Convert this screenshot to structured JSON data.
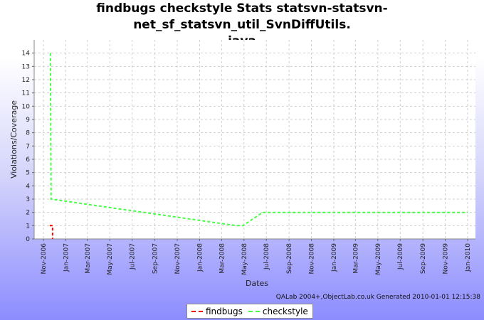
{
  "chart_data": {
    "type": "line",
    "title_line1": "findbugs checkstyle  Stats statsvn-statsvn-net_sf_statsvn_util_SvnDiffUtils.",
    "title_line2": "java",
    "xlabel": "Dates",
    "ylabel": "Violations/Coverage",
    "x_ticks": [
      "Nov-2006",
      "Jan-2007",
      "Mar-2007",
      "May-2007",
      "Jul-2007",
      "Sep-2007",
      "Nov-2007",
      "Jan-2008",
      "Mar-2008",
      "May-2008",
      "Jul-2008",
      "Sep-2008",
      "Nov-2008",
      "Jan-2009",
      "Mar-2009",
      "May-2009",
      "Jul-2009",
      "Sep-2009",
      "Nov-2009",
      "Jan-2010"
    ],
    "ylim": [
      0,
      15
    ],
    "y_ticks": [
      0,
      1,
      2,
      3,
      4,
      5,
      6,
      7,
      8,
      9,
      10,
      11,
      12,
      13,
      14
    ],
    "grid": true,
    "legend_position": "bottom",
    "series": [
      {
        "name": "findbugs",
        "color": "#ff0000",
        "points": [
          {
            "x": "2006-11-18",
            "y": 1
          },
          {
            "x": "2006-11-26",
            "y": 1
          },
          {
            "x": "2006-11-26",
            "y": 0
          }
        ]
      },
      {
        "name": "checkstyle",
        "color": "#44ff44",
        "points": [
          {
            "x": "2006-11-20",
            "y": 14
          },
          {
            "x": "2006-11-22",
            "y": 3
          },
          {
            "x": "2008-04-10",
            "y": 1
          },
          {
            "x": "2008-04-28",
            "y": 1
          },
          {
            "x": "2008-06-21",
            "y": 2
          },
          {
            "x": "2010-01-01",
            "y": 2
          }
        ]
      }
    ]
  },
  "footer": "QALab 2004+,ObjectLab.co.uk  Generated 2010-01-01 12:15:38"
}
